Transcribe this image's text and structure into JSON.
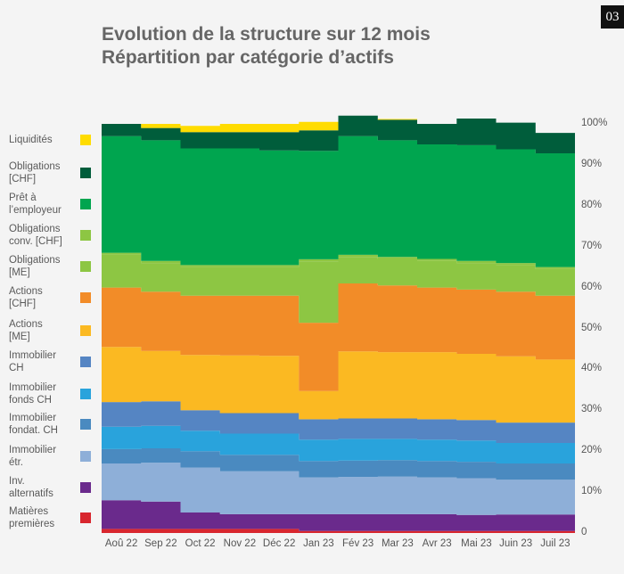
{
  "page_number": "03",
  "title_line1": "Evolution de la structure sur 12 mois",
  "title_line2": "Répartition par catégorie d’actifs",
  "chart_data": {
    "type": "area",
    "stacked": true,
    "ylim": [
      0,
      100
    ],
    "yticks": [
      "0",
      "10%",
      "20%",
      "30%",
      "40%",
      "50%",
      "60%",
      "70%",
      "80%",
      "90%",
      "100%"
    ],
    "categories": [
      "Aoû 22",
      "Sep 22",
      "Oct 22",
      "Nov 22",
      "Déc 22",
      "Jan 23",
      "Fév 23",
      "Mar 23",
      "Avr 23",
      "Mai 23",
      "Juin 23",
      "Juil 23"
    ],
    "series": [
      {
        "name": "Matières\npremières",
        "color": "#d8262e",
        "values": [
          1,
          1,
          1,
          1,
          1,
          0.5,
          0.5,
          0.5,
          0.5,
          0.5,
          0.5,
          0.5
        ]
      },
      {
        "name": "Inv.\nalternatifs",
        "color": "#6a2a8c",
        "values": [
          7,
          6.7,
          4,
          3.6,
          3.6,
          4.1,
          4.1,
          4.1,
          4.1,
          3.9,
          4,
          4
        ]
      },
      {
        "name": "Immobilier\nétr.",
        "color": "#8eafd8",
        "values": [
          9,
          9.5,
          11,
          10.5,
          10.5,
          9,
          9.1,
          9.2,
          9,
          9,
          8.5,
          8.5
        ]
      },
      {
        "name": "Immobilier\nfondat. CH",
        "color": "#4a8ac0",
        "values": [
          3.5,
          3.5,
          4,
          4,
          4,
          4,
          4,
          4,
          4,
          4,
          4,
          4
        ]
      },
      {
        "name": "Immobilier\nfonds CH",
        "color": "#29a3dc",
        "values": [
          5.5,
          5.5,
          5,
          5.2,
          5.2,
          5.2,
          5.3,
          5.2,
          5.2,
          5.2,
          5,
          5
        ]
      },
      {
        "name": "Immobilier\nCH",
        "color": "#5585c3",
        "values": [
          6,
          6,
          5,
          5,
          5,
          5,
          5,
          5,
          5,
          5,
          5,
          5
        ]
      },
      {
        "name": "Actions\n[ME]",
        "color": "#fbb922",
        "values": [
          13.5,
          12.3,
          13.5,
          14.1,
          14,
          6.9,
          16.4,
          16.2,
          16.4,
          16.2,
          16.2,
          15.4
        ]
      },
      {
        "name": "Actions\n[CHF]",
        "color": "#f28c28",
        "values": [
          14.5,
          14.5,
          14.5,
          14.6,
          14.7,
          16.7,
          16.6,
          16.3,
          15.8,
          15.7,
          15.8,
          15.6
        ]
      },
      {
        "name": "Obligations\n[ME]",
        "color": "#8dc643",
        "values": [
          8,
          7,
          7,
          7,
          7,
          15,
          6.5,
          6.5,
          6.5,
          6.5,
          6.5,
          6.5
        ]
      },
      {
        "name": "Obligations\nconv. [CHF]",
        "color": "#8dc643",
        "values": [
          0.5,
          0.5,
          0.5,
          0.5,
          0.5,
          0.5,
          0.5,
          0.5,
          0.5,
          0.5,
          0.5,
          0.5
        ]
      },
      {
        "name": "Prêt à\nl’employeur",
        "color": "#00a54f",
        "values": [
          28.5,
          29.5,
          28.5,
          28.5,
          28,
          26.5,
          29,
          28.5,
          28,
          28.3,
          27.8,
          27.8
        ]
      },
      {
        "name": "Obligations\n[CHF]",
        "color": "#005d3b",
        "values": [
          3,
          3,
          4,
          4,
          4.5,
          5,
          5,
          5,
          5,
          6.5,
          6.5,
          5
        ]
      },
      {
        "name": "Liquidités",
        "color": "#ffdc00",
        "values": [
          0,
          1,
          1.5,
          2,
          2,
          2.1,
          0,
          0.2,
          0,
          0,
          0,
          0
        ]
      }
    ]
  }
}
